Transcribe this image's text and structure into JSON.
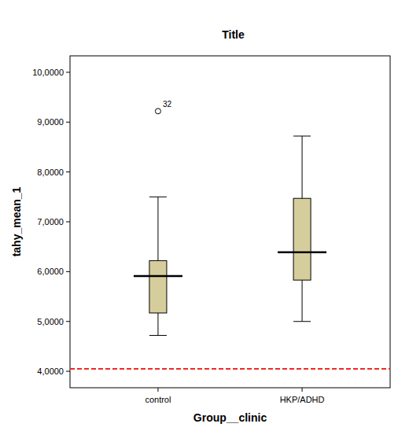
{
  "chart_data": {
    "type": "box",
    "title": "Title",
    "x_label": "Group__clinic",
    "y_label": "tahy_mean_1",
    "categories": [
      "control",
      "HKP/ADHD"
    ],
    "color": "#d5ce9c",
    "ylim": [
      3.67,
      10.33
    ],
    "yticks": [
      {
        "value": 4,
        "label": "4,0000"
      },
      {
        "value": 5,
        "label": "5,0000"
      },
      {
        "value": 6,
        "label": "6,0000"
      },
      {
        "value": 7,
        "label": "7,0000"
      },
      {
        "value": 8,
        "label": "8,0000"
      },
      {
        "value": 9,
        "label": "9,0000"
      },
      {
        "value": 10,
        "label": "10,0000"
      }
    ],
    "grid": false,
    "boxes": [
      {
        "min": 4.72,
        "q1": 5.17,
        "median": 5.91,
        "q3": 6.22,
        "max": 7.5,
        "outliers": [
          {
            "value": 9.22,
            "label": "32"
          }
        ]
      },
      {
        "min": 5.0,
        "q1": 5.83,
        "median": 6.39,
        "q3": 7.47,
        "max": 8.72,
        "outliers": []
      }
    ],
    "reference_line": {
      "value": 4.05,
      "color": "#ee2a24",
      "line_style": "dashed"
    }
  }
}
